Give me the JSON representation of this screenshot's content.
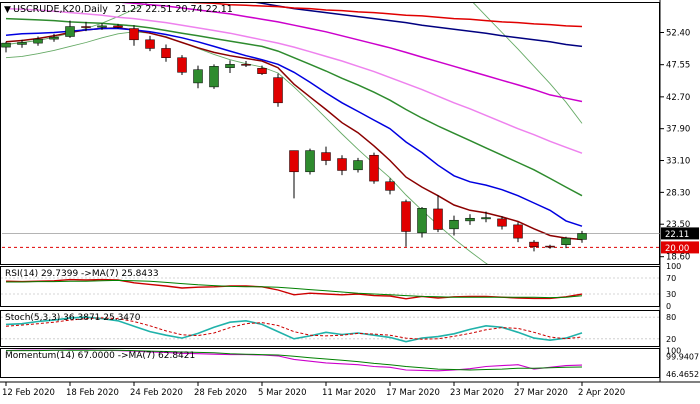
{
  "chart_data": {
    "type": "candlestick",
    "title": "USCRUDE,K20,Daily",
    "ohlc_header": "21.22 22.51 20.74 22.11",
    "symbol_marker": "▼",
    "price_axis": {
      "ylim": [
        17.5,
        57.0
      ],
      "ticks": [
        "52.40",
        "47.55",
        "42.70",
        "37.90",
        "33.10",
        "28.30",
        "23.50",
        "18.60"
      ],
      "tick_values": [
        52.4,
        47.55,
        42.7,
        37.9,
        33.1,
        28.3,
        23.5,
        18.6
      ],
      "current_price_label": "22.11",
      "current_price": 22.11,
      "level_label": "20.00",
      "level_value": 20.0
    },
    "x_axis": {
      "labels": [
        "12 Feb 2020",
        "18 Feb 2020",
        "24 Feb 2020",
        "28 Feb 2020",
        "5 Mar 2020",
        "11 Mar 2020",
        "17 Mar 2020",
        "23 Mar 2020",
        "27 Mar 2020",
        "2 Apr 2020"
      ],
      "label_index": [
        0,
        4,
        8,
        12,
        16,
        20,
        24,
        28,
        32,
        36
      ]
    },
    "candles": [
      {
        "o": 50.2,
        "h": 51.0,
        "l": 49.4,
        "c": 50.8
      },
      {
        "o": 50.6,
        "h": 51.3,
        "l": 50.1,
        "c": 50.9
      },
      {
        "o": 50.8,
        "h": 51.8,
        "l": 50.4,
        "c": 51.4
      },
      {
        "o": 51.4,
        "h": 52.2,
        "l": 51.0,
        "c": 51.7
      },
      {
        "o": 51.8,
        "h": 54.2,
        "l": 51.6,
        "c": 53.3
      },
      {
        "o": 53.3,
        "h": 54.0,
        "l": 52.6,
        "c": 53.2
      },
      {
        "o": 53.2,
        "h": 53.8,
        "l": 52.8,
        "c": 53.4
      },
      {
        "o": 53.4,
        "h": 53.7,
        "l": 53.0,
        "c": 53.2
      },
      {
        "o": 53.0,
        "h": 53.5,
        "l": 50.4,
        "c": 51.3
      },
      {
        "o": 51.3,
        "h": 51.9,
        "l": 49.6,
        "c": 50.0
      },
      {
        "o": 50.0,
        "h": 50.6,
        "l": 48.0,
        "c": 48.6
      },
      {
        "o": 48.6,
        "h": 49.0,
        "l": 46.0,
        "c": 46.4
      },
      {
        "o": 44.8,
        "h": 47.4,
        "l": 44.0,
        "c": 46.8
      },
      {
        "o": 44.2,
        "h": 47.6,
        "l": 43.9,
        "c": 47.3
      },
      {
        "o": 47.1,
        "h": 48.2,
        "l": 46.3,
        "c": 47.6
      },
      {
        "o": 47.6,
        "h": 48.1,
        "l": 47.2,
        "c": 47.5
      },
      {
        "o": 47.0,
        "h": 47.4,
        "l": 46.0,
        "c": 46.2
      },
      {
        "o": 45.6,
        "h": 46.2,
        "l": 41.2,
        "c": 41.8
      },
      {
        "o": 34.6,
        "h": 34.6,
        "l": 27.4,
        "c": 31.4
      },
      {
        "o": 31.4,
        "h": 34.9,
        "l": 31.0,
        "c": 34.6
      },
      {
        "o": 34.3,
        "h": 35.2,
        "l": 32.4,
        "c": 33.1
      },
      {
        "o": 33.4,
        "h": 33.9,
        "l": 30.9,
        "c": 31.6
      },
      {
        "o": 31.7,
        "h": 33.5,
        "l": 31.3,
        "c": 33.1
      },
      {
        "o": 33.9,
        "h": 34.3,
        "l": 29.6,
        "c": 30.0
      },
      {
        "o": 29.9,
        "h": 30.4,
        "l": 28.0,
        "c": 28.6
      },
      {
        "o": 26.9,
        "h": 27.2,
        "l": 20.1,
        "c": 22.4
      },
      {
        "o": 22.2,
        "h": 26.1,
        "l": 21.5,
        "c": 25.9
      },
      {
        "o": 25.8,
        "h": 27.9,
        "l": 22.3,
        "c": 22.7
      },
      {
        "o": 22.8,
        "h": 24.8,
        "l": 21.8,
        "c": 24.1
      },
      {
        "o": 24.0,
        "h": 25.0,
        "l": 23.4,
        "c": 24.4
      },
      {
        "o": 24.3,
        "h": 25.4,
        "l": 23.8,
        "c": 24.5
      },
      {
        "o": 24.3,
        "h": 24.7,
        "l": 22.7,
        "c": 23.2
      },
      {
        "o": 23.4,
        "h": 23.8,
        "l": 20.8,
        "c": 21.4
      },
      {
        "o": 20.8,
        "h": 21.1,
        "l": 19.4,
        "c": 20.1
      },
      {
        "o": 20.2,
        "h": 20.4,
        "l": 19.8,
        "c": 20.1
      },
      {
        "o": 20.4,
        "h": 21.6,
        "l": 19.9,
        "c": 21.4
      },
      {
        "o": 21.2,
        "h": 22.5,
        "l": 20.7,
        "c": 22.1
      }
    ],
    "moving_averages": [
      {
        "color": "#8b0000",
        "values": [
          51.0,
          51.2,
          51.5,
          51.9,
          52.4,
          52.8,
          53.0,
          53.1,
          52.8,
          52.3,
          51.7,
          50.9,
          50.1,
          49.4,
          48.9,
          48.5,
          48.1,
          47.1,
          44.6,
          42.7,
          40.8,
          38.8,
          37.3,
          35.3,
          33.1,
          30.6,
          29.1,
          27.8,
          26.4,
          25.6,
          25.2,
          24.6,
          23.9,
          22.8,
          21.8,
          21.4,
          21.2
        ]
      },
      {
        "color": "#0000e0",
        "values": [
          52.0,
          52.2,
          52.3,
          52.4,
          52.6,
          52.8,
          53.0,
          53.0,
          52.8,
          52.5,
          52.1,
          51.6,
          51.0,
          50.3,
          49.6,
          48.9,
          48.3,
          47.6,
          46.4,
          44.9,
          43.3,
          41.8,
          40.5,
          39.2,
          37.9,
          35.9,
          34.3,
          32.4,
          30.8,
          29.9,
          29.4,
          28.7,
          27.8,
          26.7,
          25.6,
          24.0,
          23.2
        ]
      },
      {
        "color": "#2e8b2e",
        "values": [
          54.5,
          54.4,
          54.3,
          54.2,
          54.0,
          53.9,
          53.8,
          53.6,
          53.4,
          53.1,
          52.7,
          52.3,
          51.9,
          51.5,
          51.1,
          50.7,
          50.3,
          49.6,
          48.6,
          47.6,
          46.6,
          45.5,
          44.5,
          43.4,
          42.2,
          40.8,
          39.5,
          38.3,
          37.2,
          36.1,
          35.0,
          33.9,
          32.8,
          31.7,
          30.4,
          29.1,
          27.8
        ]
      },
      {
        "color": "#ee82ee",
        "values": [
          56.0,
          55.9,
          55.8,
          55.6,
          55.4,
          55.2,
          55.0,
          54.7,
          54.5,
          54.2,
          53.9,
          53.5,
          53.1,
          52.7,
          52.3,
          51.8,
          51.3,
          50.8,
          50.2,
          49.5,
          48.8,
          48.1,
          47.3,
          46.5,
          45.6,
          44.7,
          43.8,
          42.8,
          41.8,
          40.9,
          39.9,
          38.9,
          37.9,
          37.0,
          36.0,
          35.1,
          34.2
        ]
      },
      {
        "color": "#cc00cc",
        "values": [
          58.0,
          57.9,
          57.8,
          57.7,
          57.6,
          57.4,
          57.2,
          57.0,
          56.8,
          56.6,
          56.4,
          56.1,
          55.8,
          55.5,
          55.2,
          54.8,
          54.4,
          54.0,
          53.5,
          53.0,
          52.5,
          51.9,
          51.3,
          50.7,
          50.1,
          49.4,
          48.7,
          48.0,
          47.3,
          46.6,
          45.9,
          45.2,
          44.5,
          43.8,
          43.0,
          42.5,
          42.0
        ]
      },
      {
        "color": "#000080",
        "values": [
          60.5,
          60.4,
          60.3,
          60.2,
          60.0,
          59.9,
          59.7,
          59.5,
          59.3,
          59.0,
          58.8,
          58.5,
          58.2,
          57.9,
          57.6,
          57.2,
          56.8,
          56.4,
          56.0,
          55.7,
          55.4,
          55.1,
          54.8,
          54.5,
          54.2,
          53.9,
          53.5,
          53.2,
          52.9,
          52.6,
          52.3,
          51.9,
          51.6,
          51.3,
          51.0,
          50.6,
          50.3
        ]
      },
      {
        "color": "#e00000",
        "values": [
          57.6,
          57.6,
          57.6,
          57.6,
          57.5,
          57.5,
          57.4,
          57.4,
          57.3,
          57.2,
          57.1,
          57.0,
          56.9,
          56.8,
          56.6,
          56.5,
          56.4,
          56.3,
          56.1,
          56.0,
          55.8,
          55.7,
          55.5,
          55.4,
          55.2,
          55.0,
          54.9,
          54.7,
          54.5,
          54.4,
          54.2,
          54.0,
          53.9,
          53.7,
          53.6,
          53.4,
          53.3
        ]
      }
    ],
    "upper_band_color": "#66aa66",
    "upper_band": [
      50.6,
      50.9,
      51.2,
      51.7,
      52.3,
      53.0,
      53.8,
      54.8,
      55.9,
      57.1,
      58.3,
      59.5,
      60.4,
      61.2,
      61.9,
      62.5,
      63.1,
      63.6,
      64.1,
      64.6,
      65.0,
      65.3,
      65.5,
      65.4,
      65.0,
      64.2,
      63.1,
      61.6,
      59.7,
      57.4,
      54.9,
      52.4,
      49.9,
      47.3,
      44.7,
      41.9,
      38.7
    ],
    "lower_band_color": "#66aa66",
    "lower_band": [
      48.6,
      48.8,
      49.2,
      49.7,
      50.3,
      50.9,
      51.6,
      52.2,
      52.5,
      52.3,
      51.8,
      50.9,
      50.0,
      49.1,
      48.3,
      47.7,
      47.2,
      46.3,
      44.2,
      41.9,
      39.5,
      37.1,
      34.8,
      32.6,
      30.5,
      27.9,
      25.6,
      23.4,
      21.3,
      19.4,
      17.6,
      16.0,
      14.6,
      13.4,
      12.4,
      11.6,
      11.0
    ],
    "rsi": {
      "label": "RSI(14) 29.7399 ->MA(7) 25.8433",
      "ticks": [
        "100",
        "70",
        "30",
        "0"
      ],
      "tick_values": [
        100,
        70,
        30,
        0
      ],
      "values": [
        62,
        61,
        62,
        63,
        66,
        65,
        66,
        65,
        58,
        54,
        50,
        45,
        47,
        48,
        50,
        50,
        48,
        40,
        28,
        32,
        30,
        28,
        30,
        26,
        25,
        18,
        24,
        20,
        23,
        24,
        24,
        22,
        20,
        19,
        19,
        23,
        29.74
      ],
      "ma_values": [
        60,
        60,
        61,
        61,
        62,
        62,
        63,
        64,
        63,
        62,
        59,
        56,
        53,
        51,
        49,
        48,
        48,
        47,
        44,
        41,
        38,
        35,
        32,
        30,
        28,
        26,
        24,
        23,
        22,
        22,
        22,
        22,
        22,
        22,
        21,
        22,
        25.84
      ],
      "line_color": "#cc0000",
      "ma_color": "#008000"
    },
    "stochastic": {
      "label": "Stoch(5,3,3) 36.3871 25.3470",
      "ticks": [
        "80",
        "20"
      ],
      "tick_values": [
        80,
        20
      ],
      "k_values": [
        60,
        62,
        68,
        72,
        78,
        80,
        76,
        70,
        55,
        40,
        30,
        22,
        35,
        52,
        66,
        70,
        60,
        40,
        20,
        28,
        38,
        32,
        36,
        30,
        24,
        12,
        22,
        26,
        34,
        46,
        56,
        52,
        38,
        22,
        16,
        22,
        36.39
      ],
      "d_values": [
        55,
        58,
        62,
        66,
        72,
        76,
        78,
        76,
        68,
        56,
        42,
        31,
        29,
        36,
        51,
        62,
        65,
        57,
        40,
        30,
        28,
        30,
        35,
        33,
        30,
        22,
        19,
        20,
        27,
        35,
        45,
        51,
        49,
        38,
        25,
        20,
        25.35
      ],
      "k_color": "#20b2aa",
      "d_color": "#cc0000"
    },
    "momentum": {
      "label": "Momentum(14) 67.0000 ->MA(7) 62.8421",
      "ticks": [
        "100",
        "99.9407",
        "46.4652"
      ],
      "tick_values": [
        100,
        99.9407,
        46.4652
      ],
      "values": [
        100,
        101,
        101,
        101,
        102,
        102,
        101,
        100,
        99,
        97,
        96,
        94,
        93,
        92,
        91,
        91,
        90,
        88,
        80,
        76,
        72,
        70,
        68,
        64,
        62,
        56,
        55,
        54,
        56,
        59,
        64,
        66,
        68,
        58,
        62,
        66,
        67
      ],
      "ma_values": [
        100,
        100,
        100,
        101,
        101,
        101,
        101,
        101,
        100,
        99,
        98,
        97,
        96,
        95,
        93,
        92,
        91,
        90,
        87,
        84,
        81,
        78,
        75,
        71,
        68,
        64,
        61,
        58,
        57,
        56,
        57,
        58,
        60,
        60,
        61,
        62,
        62.84
      ],
      "line_color": "#cc00cc",
      "ma_color": "#008000"
    },
    "colors": {
      "bull_body": "#2e8b2e",
      "bear_body": "#e00000",
      "current_price_bg": "#000000",
      "level_bg": "#e00000",
      "level_line": "#e00000",
      "grid": "#c8c8c8",
      "text": "#000000"
    }
  }
}
